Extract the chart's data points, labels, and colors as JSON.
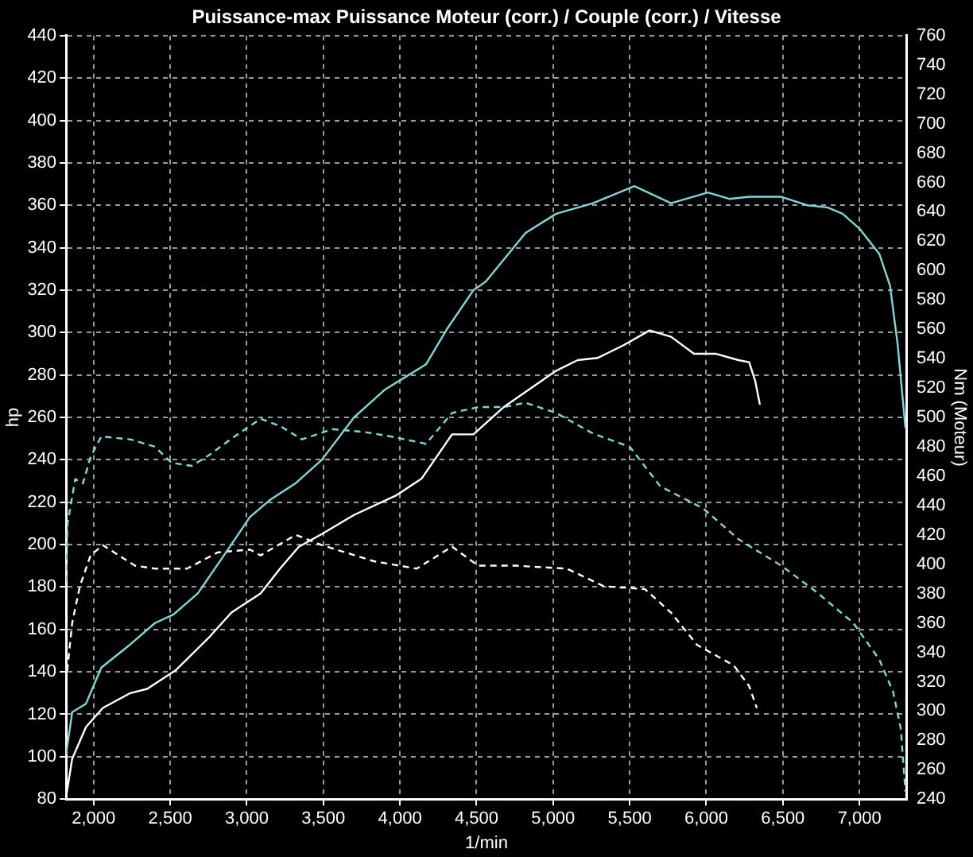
{
  "chart_data": {
    "type": "line",
    "title": "Puissance-max Puissance Moteur (corr.) / Couple (corr.) / Vitesse",
    "xlabel": "1/min",
    "ylabel": "hp",
    "y2label": "Nm (Moteur)",
    "xlim": [
      1820,
      7310
    ],
    "xticks": [
      {
        "value": 2000,
        "label": "2,000"
      },
      {
        "value": 2500,
        "label": "2,500"
      },
      {
        "value": 3000,
        "label": "3,000"
      },
      {
        "value": 3500,
        "label": "3,500"
      },
      {
        "value": 4000,
        "label": "4,000"
      },
      {
        "value": 4500,
        "label": "4,500"
      },
      {
        "value": 5000,
        "label": "5,000"
      },
      {
        "value": 5500,
        "label": "5,500"
      },
      {
        "value": 6000,
        "label": "6,000"
      },
      {
        "value": 6500,
        "label": "6,500"
      },
      {
        "value": 7000,
        "label": "7,000"
      }
    ],
    "ylim": [
      80,
      440
    ],
    "yticks": [
      80,
      100,
      120,
      140,
      160,
      180,
      200,
      220,
      240,
      260,
      280,
      300,
      320,
      340,
      360,
      380,
      400,
      420,
      440
    ],
    "y2lim": [
      240,
      760
    ],
    "y2ticks": [
      240,
      260,
      280,
      300,
      320,
      340,
      360,
      380,
      400,
      420,
      440,
      460,
      480,
      500,
      520,
      540,
      560,
      580,
      600,
      620,
      640,
      660,
      680,
      700,
      720,
      740,
      760
    ],
    "grid": true,
    "legend": false,
    "marker": "none",
    "series": [
      {
        "color": "#7fd8d8",
        "line_style": "solid",
        "x": [
          1820,
          1860,
          1950,
          2050,
          2240,
          2400,
          2520,
          2680,
          2880,
          3020,
          3150,
          3320,
          3490,
          3700,
          3900,
          4170,
          4310,
          4480,
          4560,
          4820,
          5020,
          5260,
          5530,
          5770,
          6010,
          6150,
          6280,
          6490,
          6660,
          6790,
          6890,
          7000,
          7130,
          7200,
          7250,
          7300
        ],
        "values": [
          101,
          121,
          125,
          142,
          153,
          163,
          167,
          177,
          198,
          213,
          221,
          229,
          240,
          260,
          273,
          285,
          302,
          320,
          324,
          347,
          356,
          361,
          369,
          361,
          366,
          363,
          364,
          364,
          360,
          359,
          356,
          349,
          337,
          322,
          294,
          255
        ]
      },
      {
        "color": "#ffffff",
        "line_style": "solid",
        "x": [
          1820,
          1860,
          1950,
          2060,
          2240,
          2350,
          2540,
          2750,
          2900,
          3090,
          3220,
          3340,
          3490,
          3700,
          3970,
          4140,
          4340,
          4480,
          4680,
          4820,
          5020,
          5160,
          5290,
          5460,
          5630,
          5770,
          5920,
          6060,
          6210,
          6280,
          6320,
          6350
        ],
        "values": [
          81,
          99,
          114,
          123,
          130,
          132,
          141,
          156,
          168,
          177,
          189,
          199,
          205,
          214,
          223,
          231,
          252,
          252,
          265,
          272,
          282,
          287,
          288,
          294,
          301,
          298,
          290,
          290,
          287,
          286,
          277,
          266
        ]
      },
      {
        "color": "#7fd8d8",
        "line_style": "dashed",
        "axis": "y2",
        "x": [
          1820,
          1830,
          1880,
          1930,
          1980,
          2050,
          2240,
          2400,
          2510,
          2640,
          2750,
          2920,
          3090,
          3220,
          3360,
          3560,
          3770,
          3940,
          4170,
          4340,
          4510,
          4680,
          4820,
          5020,
          5260,
          5500,
          5700,
          5980,
          6210,
          6490,
          6720,
          6960,
          7130,
          7220,
          7270,
          7300
        ],
        "values": [
          388,
          428,
          458,
          455,
          473,
          487,
          485,
          480,
          469,
          467,
          474,
          487,
          499,
          494,
          485,
          492,
          490,
          487,
          482,
          503,
          507,
          507,
          510,
          503,
          489,
          480,
          453,
          438,
          417,
          399,
          381,
          360,
          335,
          313,
          288,
          245
        ]
      },
      {
        "color": "#ffffff",
        "line_style": "dashed",
        "axis": "y2",
        "x": [
          1820,
          1860,
          1910,
          1980,
          2060,
          2270,
          2400,
          2610,
          2810,
          3020,
          3090,
          3320,
          3490,
          3830,
          4110,
          4340,
          4510,
          4750,
          5090,
          5330,
          5600,
          5770,
          5940,
          6180,
          6280,
          6330
        ],
        "values": [
          320,
          360,
          385,
          406,
          413,
          399,
          397,
          397,
          408,
          410,
          406,
          420,
          413,
          402,
          397,
          412,
          399,
          399,
          397,
          385,
          383,
          367,
          345,
          331,
          317,
          302
        ]
      }
    ]
  }
}
